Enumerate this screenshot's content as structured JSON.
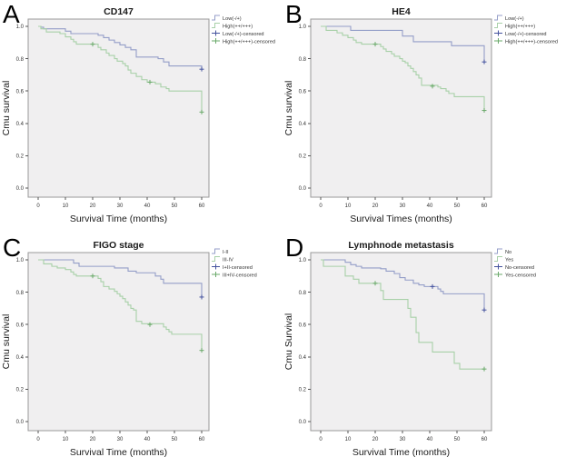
{
  "figure_title": "Kaplan-Meier survival curves",
  "colors": {
    "line_blue": "#949EC8",
    "line_green": "#A8D0A8",
    "censor_blue": "#44529E",
    "censor_green": "#6AA96A",
    "plot_bg": "#F0EFF0",
    "plot_border": "#9A9A9A",
    "tick": "#555555",
    "text": "#1A1A1A"
  },
  "chart_data": [
    {
      "type": "line",
      "panel": "A",
      "title": "CD147",
      "xlabel": "Survival Time (months)",
      "ylabel": "Cmu survival",
      "xlim": [
        0,
        63
      ],
      "ylim": [
        0.0,
        1.05
      ],
      "x_ticks": [
        0,
        10,
        20,
        30,
        40,
        50,
        60
      ],
      "y_ticks": [
        0.0,
        0.2,
        0.4,
        0.6,
        0.8,
        1.0
      ],
      "grid": false,
      "legend_position": "outside-right",
      "series": [
        {
          "name": "Low(-/+)",
          "color": "#949EC8",
          "steps": [
            [
              0,
              1.0
            ],
            [
              1,
              0.995
            ],
            [
              2,
              0.985
            ],
            [
              10,
              0.97
            ],
            [
              12,
              0.955
            ],
            [
              22,
              0.945
            ],
            [
              24,
              0.93
            ],
            [
              26,
              0.915
            ],
            [
              28,
              0.9
            ],
            [
              30,
              0.885
            ],
            [
              32,
              0.87
            ],
            [
              34,
              0.855
            ],
            [
              36,
              0.81
            ],
            [
              44,
              0.8
            ],
            [
              46,
              0.78
            ],
            [
              48,
              0.755
            ],
            [
              60,
              0.735
            ]
          ]
        },
        {
          "name": "High(++/+++)",
          "color": "#A8D0A8",
          "steps": [
            [
              0,
              1.0
            ],
            [
              1,
              0.985
            ],
            [
              3,
              0.965
            ],
            [
              8,
              0.955
            ],
            [
              10,
              0.935
            ],
            [
              12,
              0.92
            ],
            [
              13,
              0.905
            ],
            [
              14,
              0.89
            ],
            [
              22,
              0.87
            ],
            [
              23,
              0.855
            ],
            [
              25,
              0.835
            ],
            [
              26,
              0.82
            ],
            [
              28,
              0.8
            ],
            [
              29,
              0.785
            ],
            [
              31,
              0.77
            ],
            [
              32,
              0.755
            ],
            [
              33,
              0.73
            ],
            [
              34,
              0.71
            ],
            [
              36,
              0.69
            ],
            [
              38,
              0.67
            ],
            [
              40,
              0.655
            ],
            [
              43,
              0.645
            ],
            [
              45,
              0.625
            ],
            [
              47,
              0.615
            ],
            [
              48,
              0.6
            ],
            [
              60,
              0.47
            ]
          ]
        }
      ],
      "censored": [
        {
          "name": "Low(-/+)-censored",
          "color": "#44529E",
          "points": [
            [
              60,
              0.735
            ]
          ]
        },
        {
          "name": "High(++/+++)-censored",
          "color": "#6AA96A",
          "points": [
            [
              20,
              0.89
            ],
            [
              41,
              0.655
            ],
            [
              60,
              0.47
            ]
          ]
        }
      ],
      "legend": [
        "Low(-/+)",
        "High(++/+++)",
        "Low(-/+)-censored",
        "High(++/+++)-censored"
      ]
    },
    {
      "type": "line",
      "panel": "B",
      "title": "HE4",
      "xlabel": "Survival Times (months)",
      "ylabel": "Cmu survival",
      "xlim": [
        0,
        63
      ],
      "ylim": [
        0.0,
        1.05
      ],
      "x_ticks": [
        0,
        10,
        20,
        30,
        40,
        50,
        60
      ],
      "y_ticks": [
        0.0,
        0.2,
        0.4,
        0.6,
        0.8,
        1.0
      ],
      "grid": false,
      "legend_position": "outside-right",
      "series": [
        {
          "name": "Low(-/+)",
          "color": "#949EC8",
          "steps": [
            [
              0,
              1.0
            ],
            [
              11,
              0.975
            ],
            [
              30,
              0.94
            ],
            [
              34,
              0.905
            ],
            [
              48,
              0.88
            ],
            [
              60,
              0.78
            ]
          ]
        },
        {
          "name": "High(++/+++)",
          "color": "#A8D0A8",
          "steps": [
            [
              0,
              1.0
            ],
            [
              2,
              0.975
            ],
            [
              6,
              0.96
            ],
            [
              8,
              0.945
            ],
            [
              10,
              0.93
            ],
            [
              12,
              0.915
            ],
            [
              13,
              0.9
            ],
            [
              15,
              0.89
            ],
            [
              22,
              0.875
            ],
            [
              23,
              0.86
            ],
            [
              24,
              0.845
            ],
            [
              26,
              0.83
            ],
            [
              27,
              0.815
            ],
            [
              29,
              0.8
            ],
            [
              30,
              0.785
            ],
            [
              31,
              0.775
            ],
            [
              32,
              0.755
            ],
            [
              33,
              0.74
            ],
            [
              34,
              0.72
            ],
            [
              35,
              0.7
            ],
            [
              36,
              0.68
            ],
            [
              37,
              0.635
            ],
            [
              43,
              0.625
            ],
            [
              44,
              0.615
            ],
            [
              46,
              0.6
            ],
            [
              47,
              0.585
            ],
            [
              49,
              0.565
            ],
            [
              60,
              0.48
            ]
          ]
        }
      ],
      "censored": [
        {
          "name": "Low(-/+)-censored",
          "color": "#44529E",
          "points": [
            [
              60,
              0.78
            ]
          ]
        },
        {
          "name": "High(++/+++)-censored",
          "color": "#6AA96A",
          "points": [
            [
              20,
              0.89
            ],
            [
              41,
              0.63
            ],
            [
              60,
              0.48
            ]
          ]
        }
      ],
      "legend": [
        "Low(-/+)",
        "High(++/+++)",
        "Low(-/+)-censored",
        "High(++/+++)-censored"
      ]
    },
    {
      "type": "line",
      "panel": "C",
      "title": "FIGO stage",
      "xlabel": "Survival Time (months)",
      "ylabel": "Cmu survival",
      "xlim": [
        0,
        63
      ],
      "ylim": [
        0.0,
        1.05
      ],
      "x_ticks": [
        0,
        10,
        20,
        30,
        40,
        50,
        60
      ],
      "y_ticks": [
        0.0,
        0.2,
        0.4,
        0.6,
        0.8,
        1.0
      ],
      "grid": false,
      "legend_position": "outside-right",
      "series": [
        {
          "name": "I-II",
          "color": "#949EC8",
          "steps": [
            [
              0,
              1.0
            ],
            [
              13,
              0.98
            ],
            [
              15,
              0.96
            ],
            [
              28,
              0.95
            ],
            [
              33,
              0.93
            ],
            [
              36,
              0.92
            ],
            [
              43,
              0.9
            ],
            [
              45,
              0.88
            ],
            [
              46,
              0.855
            ],
            [
              60,
              0.77
            ]
          ]
        },
        {
          "name": "III-IV",
          "color": "#A8D0A8",
          "steps": [
            [
              0,
              1.0
            ],
            [
              2,
              0.975
            ],
            [
              5,
              0.96
            ],
            [
              7,
              0.95
            ],
            [
              10,
              0.94
            ],
            [
              12,
              0.925
            ],
            [
              13,
              0.91
            ],
            [
              14,
              0.9
            ],
            [
              22,
              0.885
            ],
            [
              23,
              0.865
            ],
            [
              24,
              0.835
            ],
            [
              26,
              0.82
            ],
            [
              28,
              0.805
            ],
            [
              29,
              0.79
            ],
            [
              30,
              0.775
            ],
            [
              31,
              0.76
            ],
            [
              32,
              0.74
            ],
            [
              33,
              0.72
            ],
            [
              34,
              0.7
            ],
            [
              35,
              0.69
            ],
            [
              36,
              0.62
            ],
            [
              38,
              0.605
            ],
            [
              46,
              0.585
            ],
            [
              47,
              0.57
            ],
            [
              48,
              0.555
            ],
            [
              49,
              0.54
            ],
            [
              60,
              0.44
            ]
          ]
        }
      ],
      "censored": [
        {
          "name": "I+II-censored",
          "color": "#44529E",
          "points": [
            [
              60,
              0.77
            ]
          ]
        },
        {
          "name": "III+IV-censored",
          "color": "#6AA96A",
          "points": [
            [
              20,
              0.9
            ],
            [
              41,
              0.6
            ],
            [
              60,
              0.44
            ]
          ]
        }
      ],
      "legend": [
        "I-II",
        "III-IV",
        "I+II-censored",
        "III+IV-censored"
      ]
    },
    {
      "type": "line",
      "panel": "D",
      "title": "Lymphnode metastasis",
      "xlabel": "Survival Time (months)",
      "ylabel": "Cmu Survival",
      "xlim": [
        0,
        63
      ],
      "ylim": [
        0.0,
        1.05
      ],
      "x_ticks": [
        0,
        10,
        20,
        30,
        40,
        50,
        60
      ],
      "y_ticks": [
        0.0,
        0.2,
        0.4,
        0.6,
        0.8,
        1.0
      ],
      "grid": false,
      "legend_position": "outside-right",
      "series": [
        {
          "name": "No",
          "color": "#949EC8",
          "steps": [
            [
              0,
              1.0
            ],
            [
              9,
              0.985
            ],
            [
              11,
              0.97
            ],
            [
              13,
              0.96
            ],
            [
              15,
              0.95
            ],
            [
              22,
              0.945
            ],
            [
              24,
              0.93
            ],
            [
              27,
              0.915
            ],
            [
              29,
              0.89
            ],
            [
              31,
              0.875
            ],
            [
              34,
              0.855
            ],
            [
              36,
              0.845
            ],
            [
              38,
              0.835
            ],
            [
              43,
              0.82
            ],
            [
              44,
              0.805
            ],
            [
              45,
              0.79
            ],
            [
              60,
              0.69
            ]
          ]
        },
        {
          "name": "Yes",
          "color": "#A8D0A8",
          "steps": [
            [
              0,
              1.0
            ],
            [
              1,
              0.96
            ],
            [
              9,
              0.9
            ],
            [
              12,
              0.88
            ],
            [
              14,
              0.855
            ],
            [
              22,
              0.81
            ],
            [
              23,
              0.755
            ],
            [
              32,
              0.7
            ],
            [
              33,
              0.645
            ],
            [
              35,
              0.55
            ],
            [
              36,
              0.49
            ],
            [
              41,
              0.43
            ],
            [
              49,
              0.36
            ],
            [
              51,
              0.325
            ],
            [
              60,
              0.325
            ]
          ]
        }
      ],
      "censored": [
        {
          "name": "No-censored",
          "color": "#44529E",
          "points": [
            [
              41,
              0.835
            ],
            [
              60,
              0.69
            ]
          ]
        },
        {
          "name": "Yes-censored",
          "color": "#6AA96A",
          "points": [
            [
              20,
              0.855
            ],
            [
              60,
              0.325
            ]
          ]
        }
      ],
      "legend": [
        "No",
        "Yes",
        "No-censored",
        "Yes-censored"
      ]
    }
  ]
}
